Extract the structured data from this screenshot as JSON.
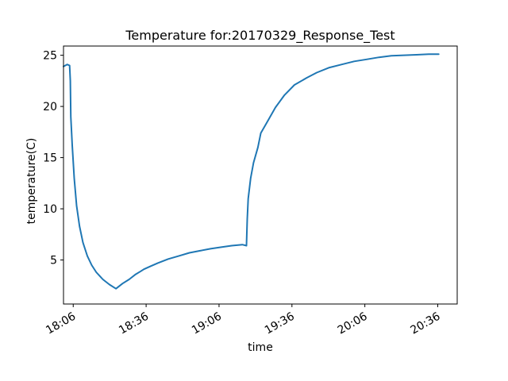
{
  "chart_data": {
    "type": "line",
    "title": "Temperature for:20170329_Response_Test",
    "xlabel": "time",
    "ylabel": "temperature(C)",
    "x_ticks": [
      "18:06",
      "18:36",
      "19:06",
      "19:36",
      "20:06",
      "20:36"
    ],
    "x_tick_values": [
      1086,
      1116,
      1146,
      1176,
      1206,
      1236
    ],
    "xlim": [
      1082,
      1244
    ],
    "y_ticks": [
      5,
      10,
      15,
      20,
      25
    ],
    "ylim": [
      0.7,
      25.9
    ],
    "grid": false,
    "legend": "none",
    "series": [
      {
        "color": "#1f77b4",
        "x": [
          1082,
          1083.5,
          1084.5,
          1084.8,
          1085.0,
          1085.6,
          1086.4,
          1087.4,
          1088.6,
          1090.0,
          1091.8,
          1093.6,
          1095.5,
          1098.2,
          1100.9,
          1103.6,
          1106.3,
          1109.0,
          1111.7,
          1113.8,
          1115.1,
          1117.9,
          1120.8,
          1125.1,
          1129.5,
          1133.8,
          1138.2,
          1142.5,
          1146.9,
          1151.2,
          1155.6,
          1157.3,
          1157.6,
          1158.0,
          1159.0,
          1160.2,
          1162.0,
          1163.2,
          1165.6,
          1169.2,
          1172.9,
          1177.0,
          1182.1,
          1186.2,
          1191.4,
          1196.5,
          1201.6,
          1206.7,
          1211.8,
          1216.9,
          1222.1,
          1227.2,
          1232.3,
          1236.4
        ],
        "y": [
          23.9,
          24.1,
          24.0,
          22.5,
          19.0,
          16.2,
          13.0,
          10.3,
          8.3,
          6.7,
          5.4,
          4.5,
          3.8,
          3.1,
          2.6,
          2.2,
          2.7,
          3.1,
          3.6,
          3.9,
          4.1,
          4.4,
          4.7,
          5.1,
          5.4,
          5.7,
          5.9,
          6.1,
          6.25,
          6.4,
          6.5,
          6.4,
          9.0,
          11.0,
          13.0,
          14.5,
          16.0,
          17.4,
          18.4,
          19.9,
          21.1,
          22.1,
          22.8,
          23.3,
          23.8,
          24.1,
          24.4,
          24.6,
          24.8,
          24.95,
          25.0,
          25.05,
          25.1,
          25.1
        ]
      }
    ]
  }
}
